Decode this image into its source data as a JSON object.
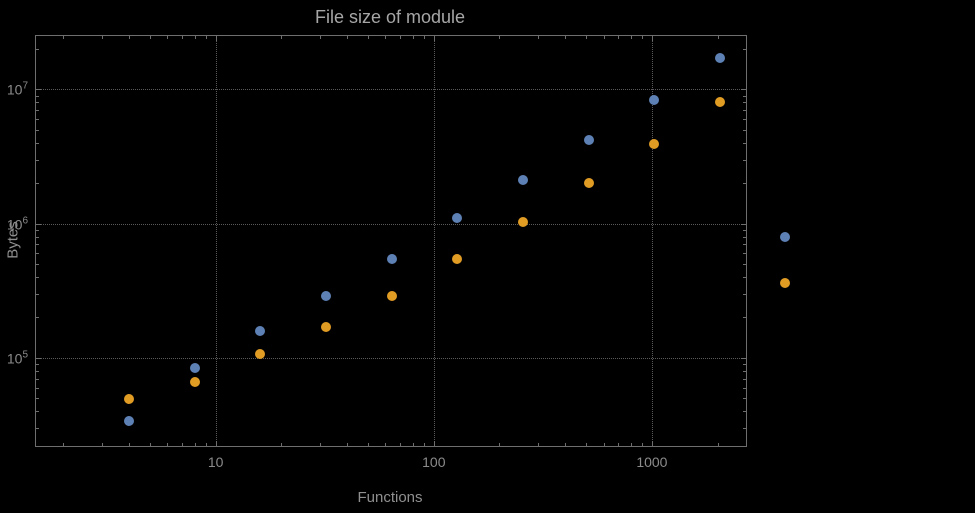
{
  "chart_data": {
    "type": "scatter",
    "title": "File size of module",
    "xlabel": "Functions",
    "ylabel": "Bytes",
    "x_scale": "log",
    "y_scale": "log",
    "xlim": [
      1.5,
      2700
    ],
    "ylim": [
      22000,
      25000000
    ],
    "grid": true,
    "legend": null,
    "x_ticks": [
      10,
      100,
      1000
    ],
    "x_tick_labels": [
      "10",
      "100",
      "1000"
    ],
    "y_ticks": [
      100000,
      1000000,
      10000000
    ],
    "y_tick_labels": [
      "10^5",
      "10^6",
      "10^7"
    ],
    "x": [
      4,
      8,
      16,
      32,
      64,
      128,
      256,
      512,
      1024,
      2048,
      4096
    ],
    "series": [
      {
        "name": "blue",
        "color": "#5e81b5",
        "values": [
          34000,
          84000,
          158000,
          290000,
          540000,
          1100000,
          2100000,
          4200000,
          8300000,
          17000000,
          800000
        ]
      },
      {
        "name": "orange",
        "color": "#e19c24",
        "values": [
          49000,
          66000,
          106000,
          170000,
          290000,
          540000,
          1030000,
          2000000,
          3900000,
          8000000,
          360000
        ]
      }
    ]
  }
}
